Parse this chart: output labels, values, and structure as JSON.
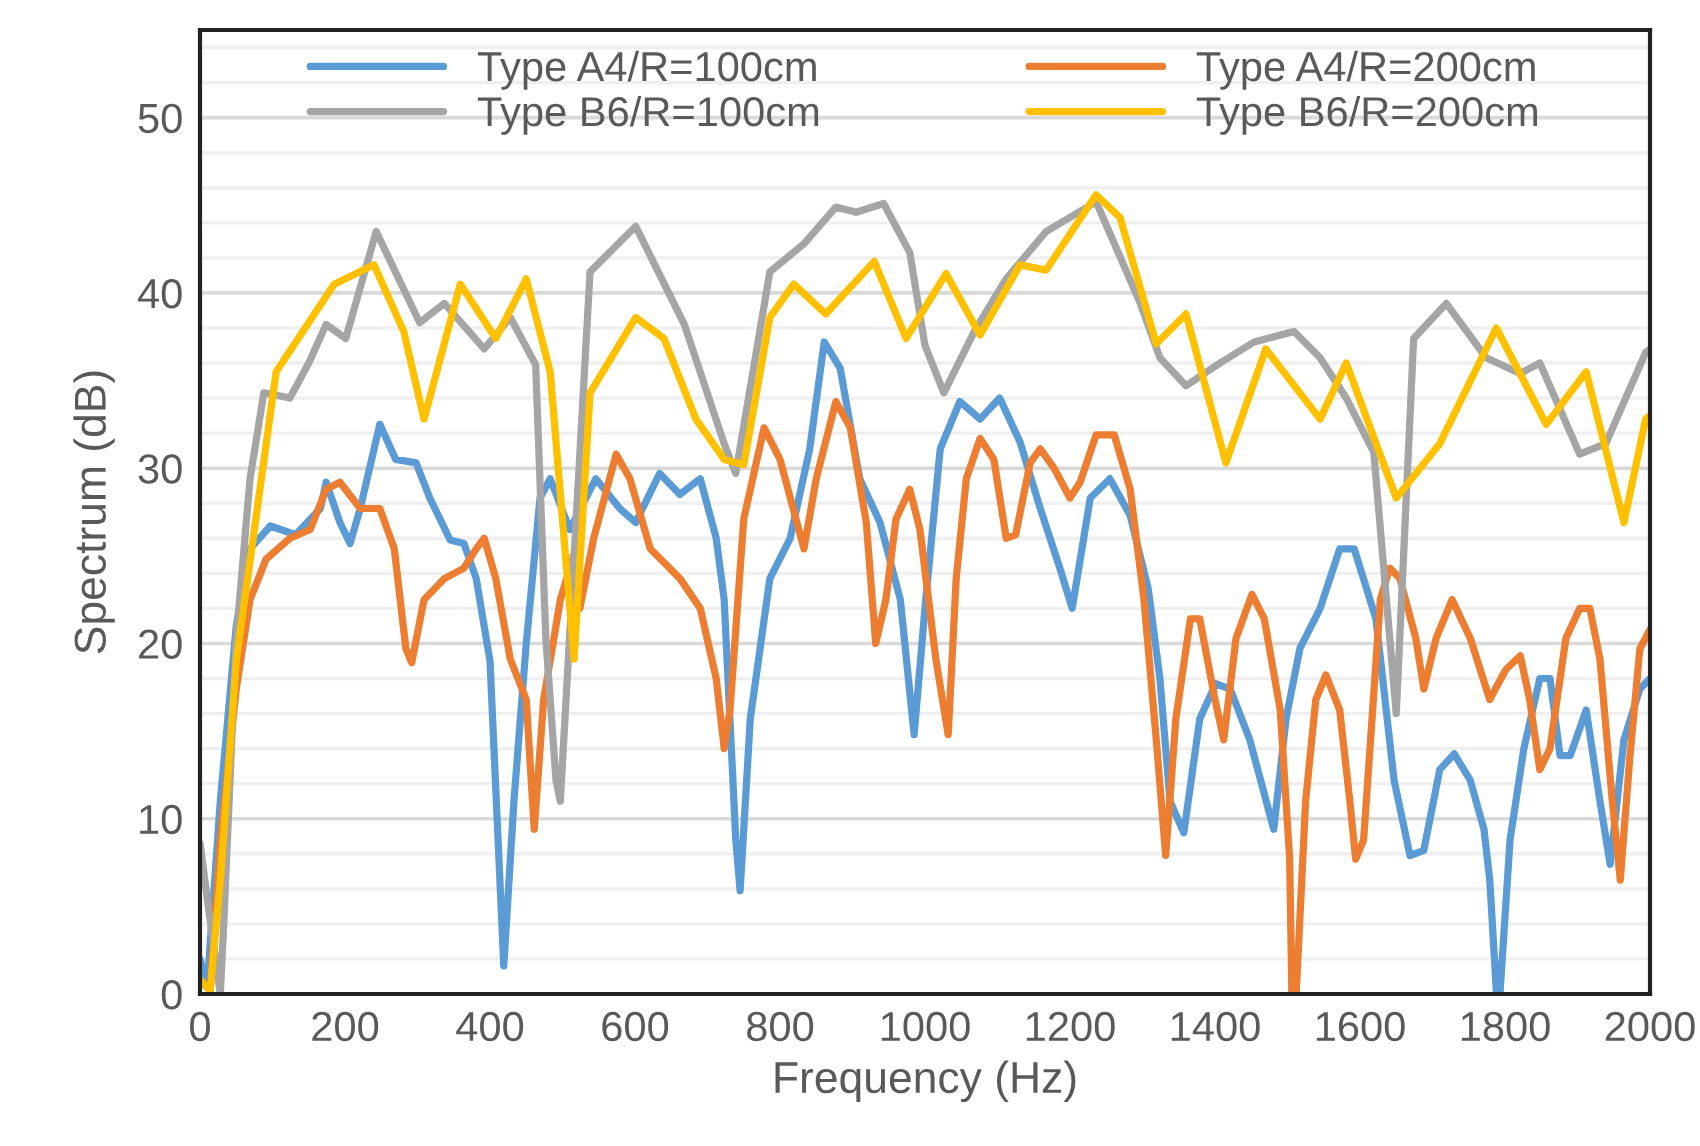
{
  "chart_data": {
    "type": "line",
    "xlabel": "Frequency (Hz)",
    "ylabel": "Spectrum (dB)",
    "xlim": [
      0,
      2000
    ],
    "xticks": [
      0,
      200,
      400,
      600,
      800,
      1000,
      1200,
      1400,
      1600,
      1800,
      2000
    ],
    "ylim": [
      0,
      55
    ],
    "yticks": [
      0,
      {
        "value": 2,
        "label": null
      },
      {
        "value": 4,
        "label": null
      },
      {
        "value": 6,
        "label": null
      },
      {
        "value": 8,
        "label": null
      },
      10,
      {
        "value": 12,
        "label": null
      },
      {
        "value": 14,
        "label": null
      },
      {
        "value": 16,
        "label": null
      },
      {
        "value": 18,
        "label": null
      },
      20,
      {
        "value": 22,
        "label": null
      },
      {
        "value": 24,
        "label": null
      },
      {
        "value": 26,
        "label": null
      },
      {
        "value": 28,
        "label": null
      },
      30,
      {
        "value": 32,
        "label": null
      },
      {
        "value": 34,
        "label": null
      },
      {
        "value": 36,
        "label": null
      },
      {
        "value": 38,
        "label": null
      },
      40,
      {
        "value": 42,
        "label": null
      },
      {
        "value": 44,
        "label": null
      },
      {
        "value": 46,
        "label": null
      },
      {
        "value": 48,
        "label": null
      },
      50,
      {
        "value": 52,
        "label": null
      },
      {
        "value": 54,
        "label": null
      }
    ],
    "grid": "y",
    "legend": "top",
    "marker": "none",
    "line_style": "solid",
    "series": [
      {
        "name": "Type A4/R=100cm",
        "color": "#5b9bd5",
        "x": [
          0,
          10,
          28,
          50,
          69,
          97,
          132,
          166,
          174,
          193,
          207,
          221,
          248,
          270,
          298,
          317,
          345,
          364,
          381,
          400,
          419,
          433,
          450,
          469,
          483,
          510,
          546,
          579,
          601,
          634,
          662,
          690,
          712,
          723,
          739,
          745,
          759,
          786,
          814,
          841,
          861,
          883,
          910,
          938,
          966,
          985,
          1001,
          1021,
          1048,
          1076,
          1103,
          1131,
          1159,
          1186,
          1203,
          1228,
          1255,
          1283,
          1308,
          1324,
          1338,
          1357,
          1379,
          1401,
          1421,
          1448,
          1481,
          1498,
          1517,
          1545,
          1572,
          1592,
          1622,
          1647,
          1669,
          1688,
          1710,
          1730,
          1752,
          1771,
          1779,
          1788,
          1793,
          1807,
          1826,
          1848,
          1862,
          1876,
          1890,
          1912,
          1931,
          1945,
          1964,
          1986,
          2000
        ],
        "values": [
          2,
          0.5,
          11,
          21,
          25.4,
          26.7,
          26.2,
          27.7,
          29.2,
          26.9,
          25.7,
          27.7,
          32.5,
          30.5,
          30.3,
          28.3,
          25.9,
          25.7,
          23.7,
          19,
          1.6,
          11,
          20,
          28.3,
          29.4,
          26.5,
          29.4,
          27.7,
          26.9,
          29.7,
          28.5,
          29.4,
          26,
          22.5,
          8.8,
          5.9,
          15.7,
          23.7,
          26,
          31.1,
          37.2,
          35.7,
          29.4,
          26.9,
          22.5,
          14.8,
          22.5,
          31.1,
          33.8,
          32.8,
          34,
          31.5,
          27.7,
          24.3,
          22,
          28.3,
          29.4,
          27.3,
          23.1,
          18,
          11,
          9.2,
          15.7,
          17.7,
          17.4,
          14.5,
          9.4,
          15.7,
          19.7,
          22,
          25.4,
          25.4,
          21.4,
          12.2,
          7.9,
          8.2,
          12.8,
          13.7,
          12.2,
          9.4,
          6.5,
          0.2,
          0,
          8.8,
          14,
          18,
          18,
          13.6,
          13.6,
          16.2,
          11,
          7.4,
          14.5,
          17.4,
          18
        ]
      },
      {
        "name": "Type A4/R=200cm",
        "color": "#ed7d31",
        "x": [
          0,
          14,
          28,
          50,
          69,
          91,
          124,
          152,
          174,
          193,
          221,
          248,
          268,
          284,
          292,
          309,
          337,
          364,
          381,
          392,
          408,
          428,
          450,
          461,
          474,
          497,
          516,
          524,
          543,
          574,
          593,
          621,
          662,
          690,
          712,
          723,
          731,
          750,
          778,
          800,
          822,
          833,
          850,
          877,
          897,
          919,
          932,
          946,
          960,
          979,
          993,
          1015,
          1032,
          1043,
          1057,
          1076,
          1095,
          1112,
          1125,
          1145,
          1159,
          1178,
          1200,
          1214,
          1236,
          1261,
          1283,
          1302,
          1319,
          1332,
          1346,
          1366,
          1379,
          1399,
          1412,
          1429,
          1451,
          1468,
          1490,
          1503,
          1506,
          1512,
          1525,
          1539,
          1553,
          1572,
          1586,
          1594,
          1605,
          1628,
          1641,
          1655,
          1677,
          1688,
          1705,
          1727,
          1752,
          1779,
          1801,
          1821,
          1834,
          1848,
          1862,
          1884,
          1903,
          1917,
          1931,
          1948,
          1959,
          1972,
          1986,
          2000
        ],
        "values": [
          0.8,
          0.2,
          8.8,
          17.4,
          22.5,
          24.8,
          26,
          26.5,
          28.8,
          29.2,
          27.7,
          27.7,
          25.4,
          19.7,
          18.9,
          22.5,
          23.7,
          24.3,
          25.4,
          26,
          23.7,
          19.1,
          16.8,
          9.4,
          16.8,
          22.5,
          25.1,
          22,
          26,
          30.8,
          29.4,
          25.4,
          23.7,
          22,
          18,
          14,
          16.2,
          27.1,
          32.3,
          30.5,
          27.1,
          25.4,
          29.4,
          33.8,
          32.3,
          26.9,
          20,
          22.5,
          27.1,
          28.8,
          26.5,
          19.1,
          14.8,
          23.7,
          29.4,
          31.7,
          30.5,
          26,
          26.2,
          30.3,
          31.1,
          30,
          28.3,
          29.2,
          31.9,
          31.9,
          28.8,
          22.5,
          14.5,
          7.9,
          15.7,
          21.4,
          21.4,
          17,
          14.5,
          20.3,
          22.8,
          21.4,
          16.2,
          7.7,
          0,
          0,
          11,
          16.8,
          18.2,
          16.2,
          11,
          7.7,
          8.8,
          22.5,
          24.3,
          23.7,
          20.3,
          17.4,
          20.3,
          22.5,
          20.3,
          16.8,
          18.5,
          19.3,
          16.8,
          12.8,
          14,
          20.3,
          22,
          22,
          19.1,
          11,
          6.5,
          13.4,
          19.7,
          20.8
        ]
      },
      {
        "name": "Type B6/R=100cm",
        "color": "#a5a5a5",
        "x": [
          0,
          14,
          28,
          33,
          50,
          69,
          88,
          124,
          150,
          174,
          201,
          243,
          303,
          337,
          392,
          428,
          463,
          477,
          491,
          497,
          508,
          538,
          601,
          668,
          723,
          739,
          786,
          833,
          877,
          905,
          943,
          979,
          1000,
          1026,
          1068,
          1112,
          1167,
          1236,
          1297,
          1324,
          1360,
          1407,
          1454,
          1509,
          1545,
          1581,
          1619,
          1650,
          1674,
          1719,
          1774,
          1821,
          1848,
          1903,
          1939,
          1994,
          2000
        ],
        "values": [
          8.6,
          4.2,
          0,
          4.2,
          20.3,
          29.4,
          34.3,
          34,
          36,
          38.2,
          37.4,
          43.5,
          38.3,
          39.4,
          36.8,
          38.6,
          35.9,
          20.3,
          12.2,
          11,
          19.1,
          41.2,
          43.8,
          38.2,
          31.4,
          29.7,
          41.2,
          42.8,
          44.9,
          44.6,
          45.1,
          42.3,
          37,
          34.3,
          37.8,
          40.8,
          43.5,
          45.2,
          39.4,
          36.3,
          34.7,
          36,
          37.2,
          37.8,
          36.3,
          34,
          30.9,
          16,
          37.4,
          39.4,
          36.3,
          35.4,
          36,
          30.8,
          31.4,
          36.6,
          36.8
        ]
      },
      {
        "name": "Type B6/R=200cm",
        "color": "#ffc000",
        "x": [
          0,
          14,
          28,
          50,
          105,
          185,
          240,
          281,
          309,
          359,
          408,
          450,
          483,
          516,
          538,
          601,
          640,
          684,
          723,
          750,
          786,
          819,
          863,
          930,
          974,
          1029,
          1076,
          1131,
          1167,
          1236,
          1269,
          1319,
          1360,
          1415,
          1470,
          1545,
          1581,
          1650,
          1710,
          1788,
          1857,
          1912,
          1964,
          1994,
          2000
        ],
        "values": [
          0.8,
          0.2,
          6.5,
          19,
          35.5,
          40.5,
          41.6,
          37.8,
          32.8,
          40.5,
          37.4,
          40.8,
          35.5,
          19.1,
          34.3,
          38.6,
          37.4,
          32.8,
          30.5,
          30.2,
          38.6,
          40.5,
          38.8,
          41.8,
          37.4,
          41.1,
          37.6,
          41.6,
          41.3,
          45.6,
          44.3,
          37.1,
          38.8,
          30.3,
          36.8,
          32.8,
          36,
          28.3,
          31.4,
          38,
          32.5,
          35.5,
          26.9,
          32.8,
          33
        ]
      }
    ]
  }
}
